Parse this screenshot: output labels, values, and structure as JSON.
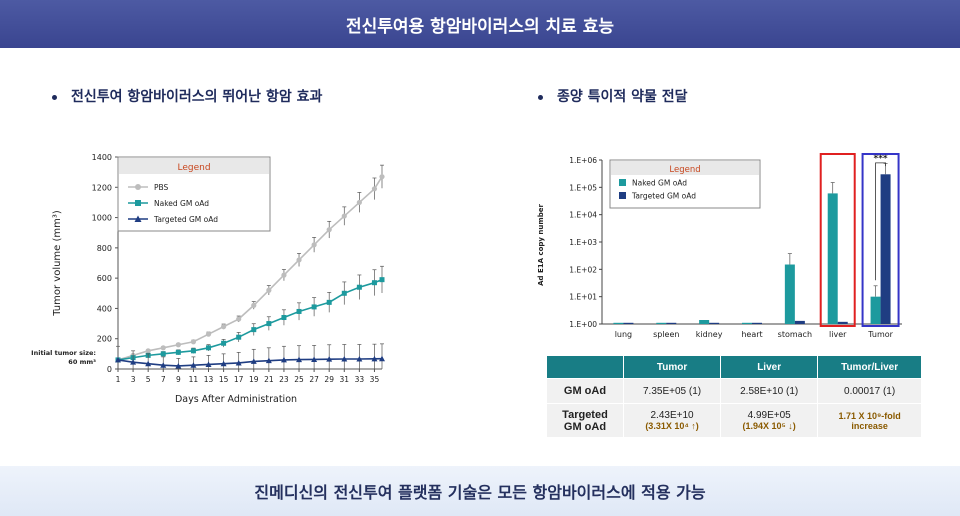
{
  "header": {
    "title": "전신투여용 항암바이러스의 치료 효능"
  },
  "left": {
    "title": "전신투여 항암바이러스의 뛰어난 항암 효과"
  },
  "right": {
    "title": "종양 특이적 약물 전달"
  },
  "footer": {
    "text": "진메디신의 전신투여 플랫폼 기술은 모든 항암바이러스에 적용 가능"
  },
  "colors": {
    "pbs": "#bdbdbd",
    "naked": "#1d9a9e",
    "targeted": "#1f3d82",
    "red_box": "#e02020",
    "blue_box": "#3535c8"
  },
  "chart_data": [
    {
      "type": "line",
      "xlabel": "Days After Administration",
      "ylabel": "Tumor volume (mm³)",
      "ylim": [
        0,
        1400
      ],
      "xlim": [
        1,
        36
      ],
      "yticks": [
        "0",
        "200",
        "400",
        "600",
        "800",
        "1000",
        "1200",
        "1400"
      ],
      "xticks": [
        "1",
        "3",
        "5",
        "7",
        "9",
        "11",
        "13",
        "15",
        "17",
        "19",
        "21",
        "23",
        "25",
        "27",
        "29",
        "31",
        "33",
        "35"
      ],
      "legend_title": "Legend",
      "annotation": [
        "Initial tumor size:",
        "60 mm³"
      ],
      "x": [
        1,
        3,
        5,
        7,
        9,
        11,
        13,
        15,
        17,
        19,
        21,
        23,
        25,
        27,
        29,
        31,
        33,
        35,
        36
      ],
      "series": [
        {
          "name": "PBS",
          "values": [
            60,
            90,
            120,
            140,
            160,
            180,
            230,
            280,
            330,
            420,
            520,
            620,
            720,
            820,
            920,
            1010,
            1100,
            1190,
            1270
          ]
        },
        {
          "name": "Naked GM oAd",
          "values": [
            60,
            75,
            90,
            100,
            110,
            120,
            140,
            170,
            210,
            260,
            300,
            340,
            380,
            410,
            440,
            500,
            540,
            570,
            590
          ]
        },
        {
          "name": "Targeted GM oAd",
          "values": [
            60,
            45,
            35,
            25,
            20,
            25,
            30,
            35,
            40,
            50,
            55,
            60,
            62,
            63,
            65,
            66,
            66,
            67,
            68
          ]
        }
      ]
    },
    {
      "type": "bar",
      "ylabel": "Ad E1A copy number",
      "yscale": "log",
      "ylim": [
        1,
        1000000
      ],
      "yticks": [
        "1.E+00",
        "1.E+01",
        "1.E+02",
        "1.E+03",
        "1.E+04",
        "1.E+05",
        "1.E+06"
      ],
      "categories": [
        "lung",
        "spleen",
        "kidney",
        "heart",
        "stomach",
        "liver",
        "Tumor"
      ],
      "legend_title": "Legend",
      "significance": "***",
      "series": [
        {
          "name": "Naked GM oAd",
          "values": [
            1.0,
            1.1,
            1.4,
            1,
            150,
            60000,
            10
          ]
        },
        {
          "name": "Targeted GM oAd",
          "values": [
            1.0,
            1.0,
            1.0,
            1,
            1.3,
            1.2,
            300000
          ]
        }
      ]
    }
  ],
  "table": {
    "headers": [
      "",
      "Tumor",
      "Liver",
      "Tumor/Liver"
    ],
    "rows": [
      {
        "label": "GM oAd",
        "tumor": "7.35E+05 (1)",
        "liver": "2.58E+10 (1)",
        "ratio": "0.00017 (1)"
      },
      {
        "label1": "Targeted",
        "label2": "GM oAd",
        "tumor": "2.43E+10",
        "tumor_sub": "(3.31X 10⁴ ↑)",
        "liver": "4.99E+05",
        "liver_sub": "(1.94X 10⁵ ↓)",
        "ratio1": "1.71 X 10⁹-fold",
        "ratio2": "increase"
      }
    ]
  }
}
